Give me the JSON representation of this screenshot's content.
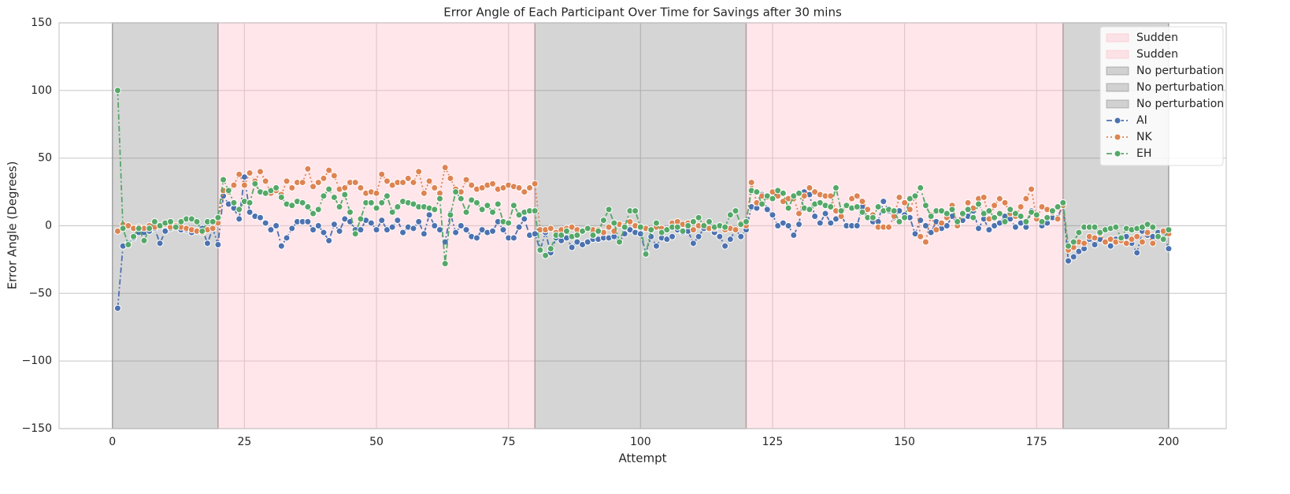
{
  "chart_data": {
    "type": "line",
    "title": "Error Angle of Each Participant Over Time for Savings after 30 mins",
    "x_label": "Attempt",
    "y_label": "Error Angle (Degrees)",
    "xlim": [
      -10.1,
      210.9
    ],
    "ylim": [
      -150,
      150
    ],
    "xticks": [
      0,
      25,
      50,
      75,
      100,
      125,
      150,
      175,
      200
    ],
    "yticks": [
      {
        "value": -150,
        "label": "−150"
      },
      {
        "value": -100,
        "label": "−100"
      },
      {
        "value": -50,
        "label": "−50"
      },
      0,
      50,
      100,
      150
    ],
    "grid": true,
    "legend": "upper right",
    "spans": [
      {
        "label": "Sudden",
        "start": 20,
        "end": 80,
        "color": "#ffc0cb",
        "alpha": 0.4
      },
      {
        "label": "Sudden",
        "start": 120,
        "end": 180,
        "color": "#ffc0cb",
        "alpha": 0.4
      },
      {
        "label": "No perturbation",
        "start": 0,
        "end": 20,
        "color": "#808080",
        "alpha": 0.33
      },
      {
        "label": "No perturbation",
        "start": 80,
        "end": 120,
        "color": "#808080",
        "alpha": 0.33
      },
      {
        "label": "No perturbation",
        "start": 180,
        "end": 200,
        "color": "#808080",
        "alpha": 0.33
      }
    ],
    "x": [
      1,
      2,
      3,
      4,
      5,
      6,
      7,
      8,
      9,
      10,
      11,
      12,
      13,
      14,
      15,
      16,
      17,
      18,
      19,
      20,
      21,
      22,
      23,
      24,
      25,
      26,
      27,
      28,
      29,
      30,
      31,
      32,
      33,
      34,
      35,
      36,
      37,
      38,
      39,
      40,
      41,
      42,
      43,
      44,
      45,
      46,
      47,
      48,
      49,
      50,
      51,
      52,
      53,
      54,
      55,
      56,
      57,
      58,
      59,
      60,
      61,
      62,
      63,
      64,
      65,
      66,
      67,
      68,
      69,
      70,
      71,
      72,
      73,
      74,
      75,
      76,
      77,
      78,
      79,
      80,
      81,
      82,
      83,
      84,
      85,
      86,
      87,
      88,
      89,
      90,
      91,
      92,
      93,
      94,
      95,
      96,
      97,
      98,
      99,
      100,
      101,
      102,
      103,
      104,
      105,
      106,
      107,
      108,
      109,
      110,
      111,
      112,
      113,
      114,
      115,
      116,
      117,
      118,
      119,
      120,
      121,
      122,
      123,
      124,
      125,
      126,
      127,
      128,
      129,
      130,
      131,
      132,
      133,
      134,
      135,
      136,
      137,
      138,
      139,
      140,
      141,
      142,
      143,
      144,
      145,
      146,
      147,
      148,
      149,
      150,
      151,
      152,
      153,
      154,
      155,
      156,
      157,
      158,
      159,
      160,
      161,
      162,
      163,
      164,
      165,
      166,
      167,
      168,
      169,
      170,
      171,
      172,
      173,
      174,
      175,
      176,
      177,
      178,
      179,
      180,
      181,
      182,
      183,
      184,
      185,
      186,
      187,
      188,
      189,
      190,
      191,
      192,
      193,
      194,
      195,
      196,
      197,
      198,
      199,
      200
    ],
    "series": [
      {
        "name": "AI",
        "color": "#4c72b0",
        "dash": "7 3 2 3",
        "values": [
          -61,
          -15,
          -13,
          -9,
          -5,
          -5,
          -4,
          -2,
          -13,
          -4,
          -2,
          -1,
          -3,
          -3,
          -5,
          -4,
          -2,
          -13,
          -2,
          -14,
          22,
          16,
          13,
          5,
          36,
          10,
          7,
          6,
          2,
          -3,
          0,
          -15,
          -9,
          -2,
          3,
          3,
          3,
          -3,
          0,
          -5,
          -11,
          1,
          -4,
          5,
          3,
          -3,
          -3,
          4,
          2,
          -3,
          4,
          -3,
          -1,
          4,
          -5,
          -1,
          -2,
          3,
          -6,
          8,
          0,
          -3,
          -12,
          9,
          -5,
          0,
          -3,
          -8,
          -9,
          -3,
          -5,
          -4,
          3,
          -3,
          -9,
          -9,
          -1,
          5,
          -7,
          -6,
          -18,
          -5,
          -20,
          -9,
          -11,
          -9,
          -16,
          -12,
          -14,
          -12,
          -10,
          -10,
          -9,
          -9,
          -8,
          -12,
          -6,
          -3,
          -5,
          -6,
          -20,
          -8,
          -15,
          -9,
          -10,
          -8,
          -3,
          -5,
          -4,
          -13,
          -8,
          -2,
          0,
          -5,
          -8,
          -15,
          -10,
          -3,
          -8,
          -3,
          14,
          13,
          23,
          12,
          8,
          0,
          2,
          0,
          -7,
          1,
          25,
          23,
          7,
          2,
          9,
          2,
          5,
          8,
          0,
          0,
          0,
          14,
          6,
          3,
          3,
          18,
          11,
          6,
          11,
          8,
          6,
          -6,
          4,
          0,
          -5,
          3,
          -2,
          0,
          7,
          1,
          4,
          7,
          11,
          -2,
          5,
          -3,
          0,
          2,
          7,
          5,
          -1,
          2,
          -1,
          11,
          6,
          0,
          2,
          6,
          6,
          16,
          -26,
          -23,
          -19,
          -17,
          -10,
          -14,
          -10,
          -12,
          -15,
          -10,
          -9,
          -8,
          -13,
          -20,
          -4,
          -7,
          -8,
          -5,
          -5,
          -17
        ]
      },
      {
        "name": "NK",
        "color": "#dd8452",
        "dash": "2 3",
        "values": [
          -4,
          1,
          0,
          -2,
          -1,
          -2,
          0,
          -1,
          0,
          1,
          -1,
          0,
          -1,
          -2,
          -3,
          -4,
          -5,
          -3,
          -2,
          2,
          26,
          25,
          30,
          38,
          30,
          39,
          33,
          40,
          33,
          24,
          26,
          23,
          33,
          28,
          32,
          32,
          42,
          29,
          32,
          35,
          41,
          37,
          27,
          28,
          32,
          32,
          28,
          24,
          25,
          24,
          38,
          33,
          30,
          32,
          32,
          35,
          32,
          40,
          24,
          33,
          28,
          24,
          43,
          35,
          27,
          25,
          34,
          30,
          27,
          28,
          30,
          31,
          27,
          28,
          30,
          29,
          28,
          25,
          28,
          31,
          -3,
          -3,
          -2,
          -5,
          -3,
          -2,
          -1,
          -3,
          -4,
          -2,
          -3,
          -3,
          -5,
          -1,
          -4,
          1,
          0,
          3,
          0,
          -1,
          -2,
          -3,
          -1,
          -2,
          -3,
          2,
          3,
          1,
          2,
          -3,
          0,
          1,
          -2,
          -2,
          0,
          -3,
          -2,
          -3,
          2,
          0,
          32,
          17,
          22,
          21,
          25,
          22,
          18,
          20,
          20,
          9,
          22,
          28,
          25,
          23,
          22,
          22,
          11,
          7,
          15,
          20,
          22,
          18,
          12,
          8,
          -1,
          -1,
          -1,
          7,
          21,
          17,
          12,
          22,
          -8,
          -12,
          8,
          -3,
          2,
          6,
          15,
          0,
          8,
          17,
          13,
          20,
          21,
          5,
          15,
          20,
          17,
          9,
          7,
          14,
          20,
          27,
          5,
          14,
          12,
          10,
          5,
          15,
          -18,
          -16,
          -12,
          -13,
          -8,
          -9,
          -6,
          -12,
          -10,
          -12,
          -11,
          -13,
          -10,
          -8,
          -12,
          -5,
          -13,
          -8,
          -4,
          -6
        ]
      },
      {
        "name": "EH",
        "color": "#55a868",
        "dash": "7 3 2 3",
        "values": [
          100,
          -2,
          -14,
          -8,
          -2,
          -11,
          -2,
          3,
          0,
          2,
          3,
          -1,
          3,
          5,
          5,
          3,
          -4,
          3,
          3,
          6,
          34,
          26,
          17,
          12,
          18,
          17,
          31,
          25,
          24,
          26,
          28,
          21,
          16,
          15,
          18,
          17,
          14,
          9,
          12,
          22,
          27,
          21,
          14,
          23,
          10,
          -6,
          5,
          17,
          17,
          13,
          17,
          22,
          10,
          14,
          18,
          17,
          16,
          14,
          14,
          13,
          12,
          20,
          -28,
          8,
          25,
          20,
          10,
          19,
          17,
          12,
          15,
          10,
          16,
          3,
          2,
          15,
          8,
          10,
          11,
          11,
          -18,
          -22,
          -17,
          -7,
          -7,
          -4,
          -8,
          -7,
          -4,
          -2,
          -7,
          -4,
          4,
          12,
          2,
          -12,
          -1,
          11,
          11,
          -1,
          -21,
          -3,
          2,
          -5,
          -3,
          -1,
          -1,
          -4,
          0,
          3,
          6,
          0,
          3,
          -1,
          0,
          -1,
          8,
          11,
          1,
          3,
          26,
          25,
          16,
          22,
          20,
          26,
          24,
          13,
          22,
          24,
          13,
          12,
          16,
          17,
          15,
          14,
          28,
          11,
          15,
          13,
          14,
          10,
          6,
          6,
          14,
          11,
          12,
          11,
          3,
          6,
          20,
          22,
          28,
          15,
          7,
          11,
          11,
          9,
          12,
          3,
          9,
          12,
          6,
          16,
          9,
          11,
          6,
          9,
          3,
          12,
          9,
          7,
          3,
          10,
          8,
          3,
          6,
          11,
          14,
          17,
          -15,
          -12,
          -5,
          -1,
          -1,
          -1,
          -5,
          -3,
          -2,
          -1,
          -9,
          -2,
          -3,
          -2,
          -1,
          1,
          -1,
          -8,
          -10,
          -3
        ]
      }
    ]
  }
}
